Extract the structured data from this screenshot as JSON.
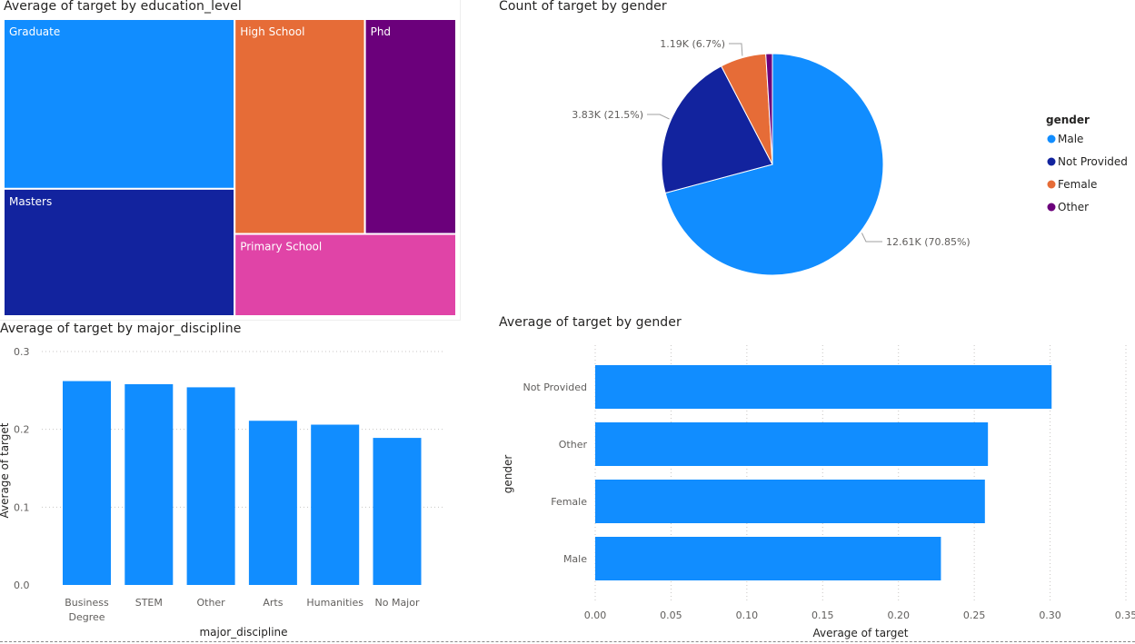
{
  "colors": {
    "blue": "#118dff",
    "navy": "#12239e",
    "orange": "#e66c37",
    "purple": "#6b007b",
    "pink": "#e044a7"
  },
  "treemap": {
    "title": "Average of target by education_level",
    "chart_data": {
      "type": "treemap",
      "title": "Average of target by education_level",
      "items": [
        {
          "label": "Graduate",
          "value": 0.28,
          "color": "#118dff"
        },
        {
          "label": "Masters",
          "value": 0.21,
          "color": "#12239e"
        },
        {
          "label": "High School",
          "value": 0.2,
          "color": "#e66c37"
        },
        {
          "label": "Phd",
          "value": 0.14,
          "color": "#6b007b"
        },
        {
          "label": "Primary School",
          "value": 0.13,
          "color": "#e044a7"
        }
      ]
    }
  },
  "pie": {
    "title": "Count of target by gender",
    "legend_title": "gender",
    "chart_data": {
      "type": "pie",
      "title": "Count of target by gender",
      "legend_position": "right",
      "slices": [
        {
          "label": "Male",
          "value": 12610,
          "percent": 70.85,
          "data_label": "12.61K (70.85%)",
          "color": "#118dff"
        },
        {
          "label": "Not Provided",
          "value": 3830,
          "percent": 21.5,
          "data_label": "3.83K (21.5%)",
          "color": "#12239e"
        },
        {
          "label": "Female",
          "value": 1190,
          "percent": 6.7,
          "data_label": "1.19K (6.7%)",
          "color": "#e66c37"
        },
        {
          "label": "Other",
          "value": 170,
          "percent": 0.95,
          "data_label": "",
          "color": "#6b007b"
        }
      ]
    }
  },
  "bar": {
    "title": "Average of target by major_discipline",
    "chart_data": {
      "type": "bar",
      "title": "Average of target by major_discipline",
      "categories": [
        "Business Degree",
        "STEM",
        "Other",
        "Arts",
        "Humanities",
        "No Major"
      ],
      "category_lines": [
        [
          "Business",
          "Degree"
        ],
        [
          "STEM"
        ],
        [
          "Other"
        ],
        [
          "Arts"
        ],
        [
          "Humanities"
        ],
        [
          "No Major"
        ]
      ],
      "values": [
        0.262,
        0.258,
        0.254,
        0.211,
        0.206,
        0.189
      ],
      "xlabel": "major_discipline",
      "ylabel": "Average of target",
      "ylim": [
        0,
        0.3
      ],
      "yticks": [
        "0.0",
        "0.1",
        "0.2",
        "0.3"
      ],
      "grid": true,
      "color": "#118dff"
    }
  },
  "hbar": {
    "title": "Average of target by gender",
    "chart_data": {
      "type": "bar",
      "orientation": "horizontal",
      "title": "Average of target by gender",
      "categories": [
        "Not Provided",
        "Other",
        "Female",
        "Male"
      ],
      "values": [
        0.301,
        0.259,
        0.257,
        0.228
      ],
      "xlabel": "Average of target",
      "ylabel": "gender",
      "xlim": [
        0,
        0.35
      ],
      "xticks": [
        "0.00",
        "0.05",
        "0.10",
        "0.15",
        "0.20",
        "0.25",
        "0.30",
        "0.35"
      ],
      "grid": true,
      "color": "#118dff"
    }
  }
}
